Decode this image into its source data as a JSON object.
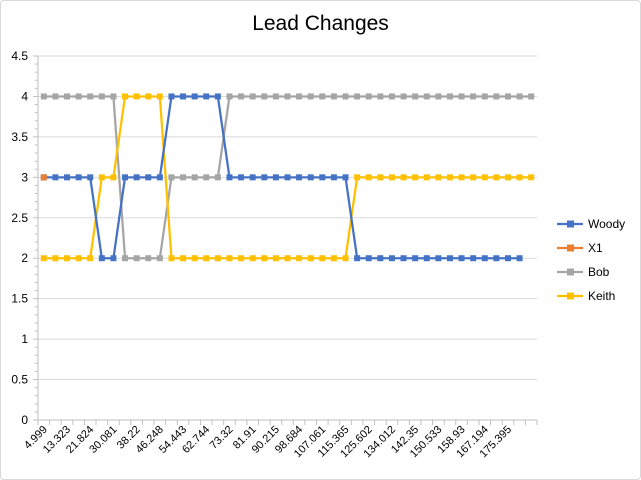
{
  "chart_data": {
    "type": "line",
    "title": "Lead Changes",
    "xlabel": "",
    "ylabel": "",
    "ylim": [
      0,
      4.5
    ],
    "y_ticks": [
      "0",
      "0.5",
      "1",
      "1.5",
      "2",
      "2.5",
      "3",
      "3.5",
      "4",
      "4.5"
    ],
    "x_tick_labels": [
      "4.999",
      "13.323",
      "21.824",
      "30.081",
      "38.22",
      "46.248",
      "54.443",
      "62.744",
      "73.32",
      "81.91",
      "90.215",
      "98.684",
      "107.061",
      "115.365",
      "125.602",
      "134.012",
      "142.35",
      "150.533",
      "158.93",
      "167.194",
      "175.395"
    ],
    "num_categories": 43,
    "grid": true,
    "legend_position": "right",
    "series": [
      {
        "name": "Woody",
        "color": "#4472c4",
        "values": [
          3,
          3,
          3,
          3,
          3,
          2,
          2,
          3,
          3,
          3,
          3,
          4,
          4,
          4,
          4,
          4,
          3,
          3,
          3,
          3,
          3,
          3,
          3,
          3,
          3,
          3,
          3,
          2,
          2,
          2,
          2,
          2,
          2,
          2,
          2,
          2,
          2,
          2,
          2,
          2,
          2,
          2,
          null
        ]
      },
      {
        "name": "X1",
        "color": "#ed7d31",
        "values": [
          3
        ]
      },
      {
        "name": "Bob",
        "color": "#a5a5a5",
        "values": [
          4,
          4,
          4,
          4,
          4,
          4,
          4,
          2,
          2,
          2,
          2,
          3,
          3,
          3,
          3,
          3,
          4,
          4,
          4,
          4,
          4,
          4,
          4,
          4,
          4,
          4,
          4,
          4,
          4,
          4,
          4,
          4,
          4,
          4,
          4,
          4,
          4,
          4,
          4,
          4,
          4,
          4,
          4
        ]
      },
      {
        "name": "Keith",
        "color": "#ffc000",
        "values": [
          2,
          2,
          2,
          2,
          2,
          3,
          3,
          4,
          4,
          4,
          4,
          2,
          2,
          2,
          2,
          2,
          2,
          2,
          2,
          2,
          2,
          2,
          2,
          2,
          2,
          2,
          2,
          3,
          3,
          3,
          3,
          3,
          3,
          3,
          3,
          3,
          3,
          3,
          3,
          3,
          3,
          3,
          3
        ]
      }
    ]
  }
}
